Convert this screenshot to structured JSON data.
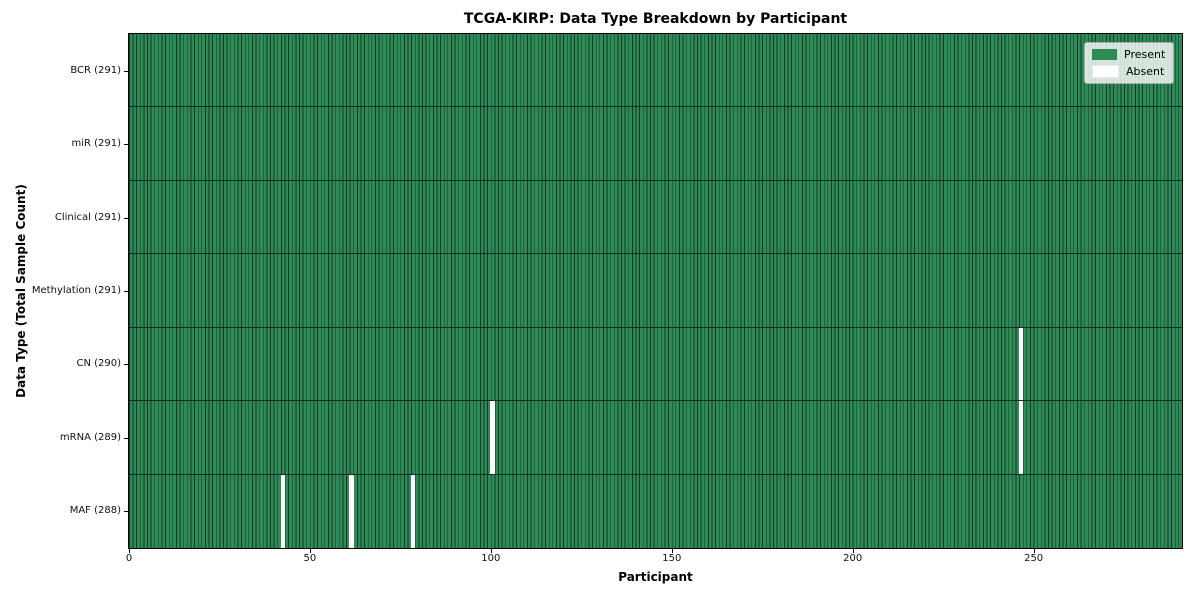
{
  "chart_data": {
    "type": "heatmap",
    "title": "TCGA-KIRP: Data Type Breakdown by Participant",
    "xlabel": "Participant",
    "ylabel": "Data Type (Total Sample Count)",
    "x_ticks": [
      0,
      50,
      100,
      150,
      200,
      250
    ],
    "x_range": [
      0,
      291
    ],
    "participants": 291,
    "grid": true,
    "rows": [
      {
        "label": "BCR (291)",
        "data_type": "BCR",
        "present_count": 291,
        "absent_participants": []
      },
      {
        "label": "miR (291)",
        "data_type": "miR",
        "present_count": 291,
        "absent_participants": []
      },
      {
        "label": "Clinical (291)",
        "data_type": "Clinical",
        "present_count": 291,
        "absent_participants": []
      },
      {
        "label": "Methylation (291)",
        "data_type": "Methylation",
        "present_count": 291,
        "absent_participants": []
      },
      {
        "label": "CN (290)",
        "data_type": "CN",
        "present_count": 290,
        "absent_participants": [
          246
        ]
      },
      {
        "label": "mRNA (289)",
        "data_type": "mRNA",
        "present_count": 289,
        "absent_participants": [
          100,
          246
        ]
      },
      {
        "label": "MAF (288)",
        "data_type": "MAF",
        "present_count": 288,
        "absent_participants": [
          42,
          61,
          78
        ]
      }
    ],
    "legend": {
      "position": "upper right",
      "entries": [
        {
          "label": "Present",
          "color": "#2e8b57"
        },
        {
          "label": "Absent",
          "color": "#ffffff"
        }
      ]
    },
    "colors": {
      "present": "#2e8b57",
      "absent": "#ffffff",
      "cell_edge": "rgba(0,0,0,0.6)",
      "row_divider": "#142c1d",
      "spine": "#000000",
      "legend_border": "#aaaaaa"
    }
  }
}
